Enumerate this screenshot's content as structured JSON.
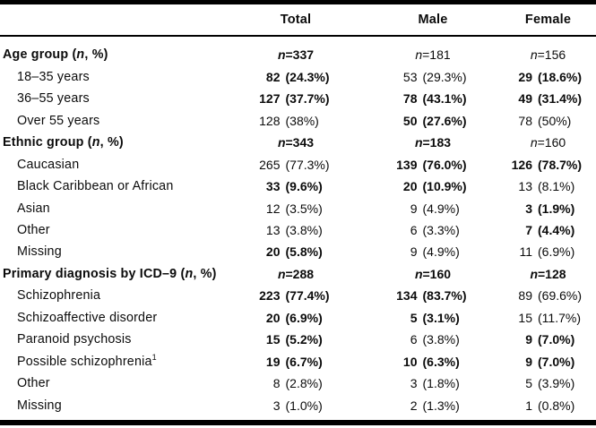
{
  "table": {
    "columns": [
      "Total",
      "Male",
      "Female"
    ],
    "rows": [
      {
        "label": "Age group (*n*, %)",
        "indent": false,
        "bold_label": true,
        "cells": [
          "*n*=337",
          "*n*=181",
          "*n*=156"
        ],
        "bold": [
          true,
          false,
          false
        ]
      },
      {
        "label": "18–35 years",
        "indent": true,
        "bold_label": false,
        "cells": [
          "82 (24.3%)",
          "53 (29.3%)",
          "29 (18.6%)"
        ],
        "bold": [
          true,
          false,
          true
        ]
      },
      {
        "label": "36–55 years",
        "indent": true,
        "bold_label": false,
        "cells": [
          "127 (37.7%)",
          "78 (43.1%)",
          "49 (31.4%)"
        ],
        "bold": [
          true,
          true,
          true
        ]
      },
      {
        "label": "Over 55 years",
        "indent": true,
        "bold_label": false,
        "cells": [
          "128 (38%)",
          "50 (27.6%)",
          "78 (50%)"
        ],
        "bold": [
          false,
          true,
          false
        ]
      },
      {
        "label": "Ethnic group (*n*, %)",
        "indent": false,
        "bold_label": true,
        "cells": [
          "*n*=343",
          "*n*=183",
          "*n*=160"
        ],
        "bold": [
          true,
          true,
          false
        ]
      },
      {
        "label": "Caucasian",
        "indent": true,
        "bold_label": false,
        "cells": [
          "265 (77.3%)",
          "139 (76.0%)",
          "126 (78.7%)"
        ],
        "bold": [
          false,
          true,
          true
        ]
      },
      {
        "label": "Black Caribbean or African",
        "indent": true,
        "bold_label": false,
        "cells": [
          "33 (9.6%)",
          "20 (10.9%)",
          "13 (8.1%)"
        ],
        "bold": [
          true,
          true,
          false
        ]
      },
      {
        "label": "Asian",
        "indent": true,
        "bold_label": false,
        "cells": [
          "12 (3.5%)",
          "9 (4.9%)",
          "3 (1.9%)"
        ],
        "bold": [
          false,
          false,
          true
        ]
      },
      {
        "label": "Other",
        "indent": true,
        "bold_label": false,
        "cells": [
          "13 (3.8%)",
          "6 (3.3%)",
          "7 (4.4%)"
        ],
        "bold": [
          false,
          false,
          true
        ]
      },
      {
        "label": "Missing",
        "indent": true,
        "bold_label": false,
        "cells": [
          "20 (5.8%)",
          "9 (4.9%)",
          "11 (6.9%)"
        ],
        "bold": [
          true,
          false,
          false
        ]
      },
      {
        "label": "Primary diagnosis by ICD–9 (*n*, %)",
        "indent": false,
        "bold_label": true,
        "cells": [
          "*n*=288",
          "*n*=160",
          "*n*=128"
        ],
        "bold": [
          true,
          true,
          true
        ]
      },
      {
        "label": "Schizophrenia",
        "indent": true,
        "bold_label": false,
        "cells": [
          "223 (77.4%)",
          "134 (83.7%)",
          "89 (69.6%)"
        ],
        "bold": [
          true,
          true,
          false
        ]
      },
      {
        "label": "Schizoaffective disorder",
        "indent": true,
        "bold_label": false,
        "cells": [
          "20 (6.9%)",
          "5 (3.1%)",
          "15 (11.7%)"
        ],
        "bold": [
          true,
          true,
          false
        ]
      },
      {
        "label": "Paranoid psychosis",
        "indent": true,
        "bold_label": false,
        "cells": [
          "15 (5.2%)",
          "6 (3.8%)",
          "9 (7.0%)"
        ],
        "bold": [
          true,
          false,
          true
        ]
      },
      {
        "label": "Possible schizophrenia^1",
        "indent": true,
        "bold_label": false,
        "cells": [
          "19 (6.7%)",
          "10 (6.3%)",
          "9 (7.0%)"
        ],
        "bold": [
          true,
          true,
          true
        ]
      },
      {
        "label": "Other",
        "indent": true,
        "bold_label": false,
        "cells": [
          "8 (2.8%)",
          "3 (1.8%)",
          "5 (3.9%)"
        ],
        "bold": [
          false,
          false,
          false
        ]
      },
      {
        "label": "Missing",
        "indent": true,
        "bold_label": false,
        "cells": [
          "3 (1.0%)",
          "2 (1.3%)",
          "1 (0.8%)"
        ],
        "bold": [
          false,
          false,
          false
        ]
      }
    ]
  }
}
